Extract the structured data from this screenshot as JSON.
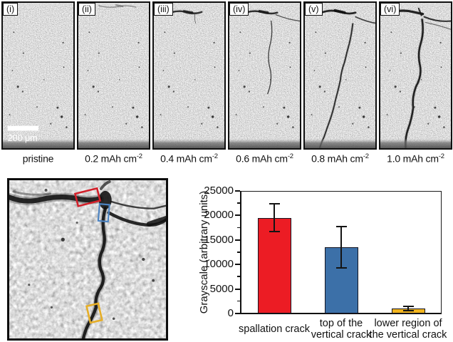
{
  "panel_sequence": {
    "scale_bar_label": "200 μm",
    "items": [
      {
        "tag": "(i)",
        "caption_base": "pristine",
        "caption_sup": ""
      },
      {
        "tag": "(ii)",
        "caption_base": "0.2 mAh cm",
        "caption_sup": "-2"
      },
      {
        "tag": "(iii)",
        "caption_base": "0.4 mAh cm",
        "caption_sup": "-2"
      },
      {
        "tag": "(iv)",
        "caption_base": "0.6 mAh cm",
        "caption_sup": "-2"
      },
      {
        "tag": "(v)",
        "caption_base": "0.8 mAh cm",
        "caption_sup": "-2"
      },
      {
        "tag": "(vi)",
        "caption_base": "1.0 mAh cm",
        "caption_sup": "-2"
      }
    ]
  },
  "inset": {
    "annotations": [
      {
        "region": "spallation crack",
        "box_color": "#d2202a"
      },
      {
        "region": "top of the vertical crack",
        "box_color": "#4d84c2"
      },
      {
        "region": "lower region of the vertical crack",
        "box_color": "#e6ae27"
      }
    ]
  },
  "chart_data": {
    "type": "bar",
    "title": "",
    "xlabel": "",
    "ylabel": "Grayscale (arbitrary units)",
    "categories": [
      "spallation crack",
      "top of the vertical crack",
      "lower region of the vertical crack"
    ],
    "category_lines": [
      [
        "spallation crack"
      ],
      [
        "top of the",
        "vertical crack"
      ],
      [
        "lower region of",
        "the vertical crack"
      ]
    ],
    "values": [
      19500,
      13500,
      1000
    ],
    "error_bars": [
      2850,
      4250,
      400
    ],
    "bar_colors": [
      "#ec1c24",
      "#3c70a8",
      "#f2b41e"
    ],
    "ylim": [
      0,
      25000
    ],
    "yticks": [
      0,
      5000,
      10000,
      15000,
      20000,
      25000
    ],
    "minor_tick_step": 2500,
    "grid": false,
    "legend": false
  }
}
